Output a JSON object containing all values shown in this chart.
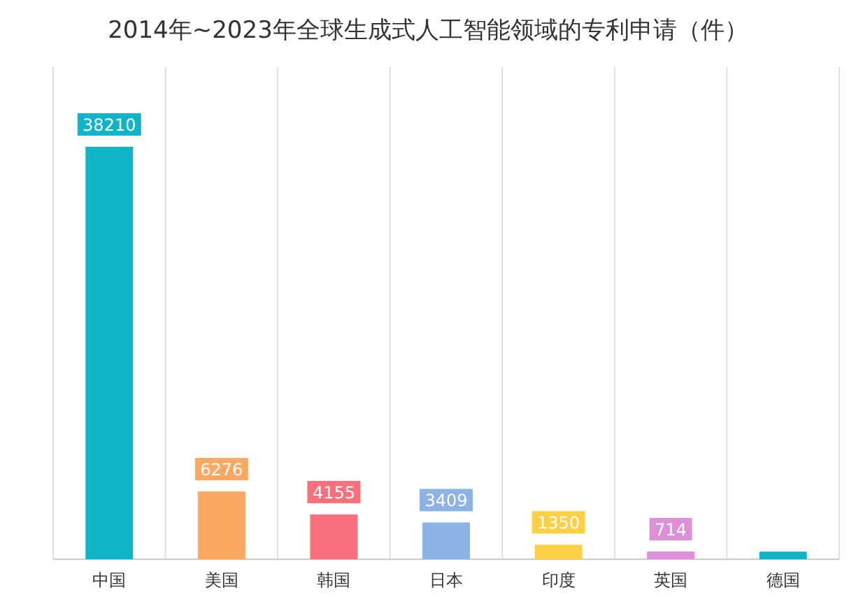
{
  "chart_data": {
    "type": "bar",
    "title": "2014年~2023年全球生成式人工智能领域的专利申请（件）",
    "categories": [
      "中国",
      "美国",
      "韩国",
      "日本",
      "印度",
      "英国",
      "德国"
    ],
    "values": [
      38210,
      6276,
      4155,
      3409,
      1350,
      714,
      700
    ],
    "value_labels": [
      "38210",
      "6276",
      "4155",
      "3409",
      "1350",
      "714",
      null
    ],
    "colors": [
      "#10b4c8",
      "#fba862",
      "#f86f7e",
      "#8db2e6",
      "#fdd046",
      "#dd8fd8",
      "#10b4c8"
    ],
    "grid": "x"
  }
}
